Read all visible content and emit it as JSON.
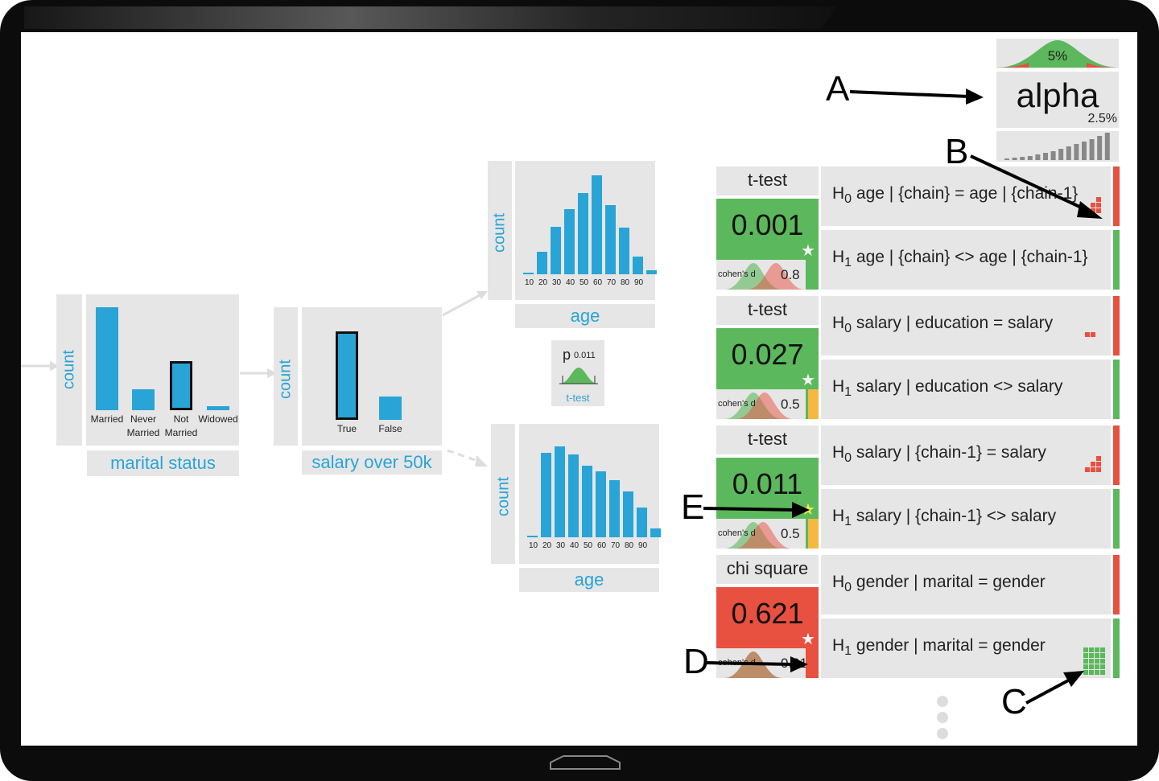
{
  "colors": {
    "accent": "#29a4d6",
    "significant": "#5cb85c",
    "not_significant": "#e8503f",
    "warn": "#f5b942"
  },
  "alpha": {
    "top_pct": "5%",
    "label": "alpha",
    "sub_pct": "2.5%"
  },
  "callouts": {
    "a": "A",
    "b": "B",
    "c": "C",
    "d": "D",
    "e": "E"
  },
  "marital": {
    "ylabel": "count",
    "title": "marital status",
    "categories": [
      {
        "line1": "Married",
        "line2": ""
      },
      {
        "line1": "Never",
        "line2": "Married"
      },
      {
        "line1": "Not",
        "line2": "Married"
      },
      {
        "line1": "Widowed",
        "line2": ""
      }
    ],
    "values": [
      100,
      20,
      48,
      4
    ],
    "selected": 2
  },
  "salary": {
    "ylabel": "count",
    "title": "salary over 50k",
    "categories": [
      "True",
      "False"
    ],
    "values": [
      100,
      26
    ],
    "selected": 0
  },
  "age_top": {
    "ylabel": "count",
    "title": "age",
    "ticks": [
      "10",
      "20",
      "30",
      "40",
      "50",
      "60",
      "70",
      "80",
      "90"
    ],
    "values": [
      1,
      23,
      48,
      66,
      82,
      100,
      70,
      47,
      18,
      4
    ]
  },
  "age_bottom": {
    "ylabel": "count",
    "title": "age",
    "ticks": [
      "10",
      "20",
      "30",
      "40",
      "50",
      "60",
      "70",
      "80",
      "90"
    ],
    "values": [
      1,
      85,
      92,
      84,
      72,
      67,
      58,
      46,
      30,
      9
    ]
  },
  "ptest": {
    "p_label": "p",
    "p_value": "0.011",
    "test": "t-test"
  },
  "tests": [
    {
      "name": "t-test",
      "p": "0.001",
      "color": "green",
      "cohen_label": "cohen's d",
      "effect": "0.8",
      "strip": "green",
      "h0": {
        "h": "H",
        "sub": "0",
        "text": "age | {chain} = age | {chain-1}"
      },
      "h1": {
        "h": "H",
        "sub": "1",
        "text": "age | {chain} <> age | {chain-1}"
      }
    },
    {
      "name": "t-test",
      "p": "0.027",
      "color": "green",
      "cohen_label": "cohen's d",
      "effect": "0.5",
      "strip": "yellow",
      "h0": {
        "h": "H",
        "sub": "0",
        "text": "salary | education = salary"
      },
      "h1": {
        "h": "H",
        "sub": "1",
        "text": "salary | education <> salary"
      }
    },
    {
      "name": "t-test",
      "p": "0.011",
      "color": "green",
      "cohen_label": "cohen's d",
      "effect": "0.5",
      "strip": "yellow",
      "h0": {
        "h": "H",
        "sub": "0",
        "text": "salary | {chain-1} = salary"
      },
      "h1": {
        "h": "H",
        "sub": "1",
        "text": "salary | {chain-1} <> salary"
      }
    },
    {
      "name": "chi square",
      "p": "0.621",
      "color": "red",
      "cohen_label": "cohen's d",
      "effect": "0.01",
      "strip": "red",
      "h0": {
        "h": "H",
        "sub": "0",
        "text": "gender | marital = gender"
      },
      "h1": {
        "h": "H",
        "sub": "1",
        "text": "gender | marital = gender"
      }
    }
  ]
}
